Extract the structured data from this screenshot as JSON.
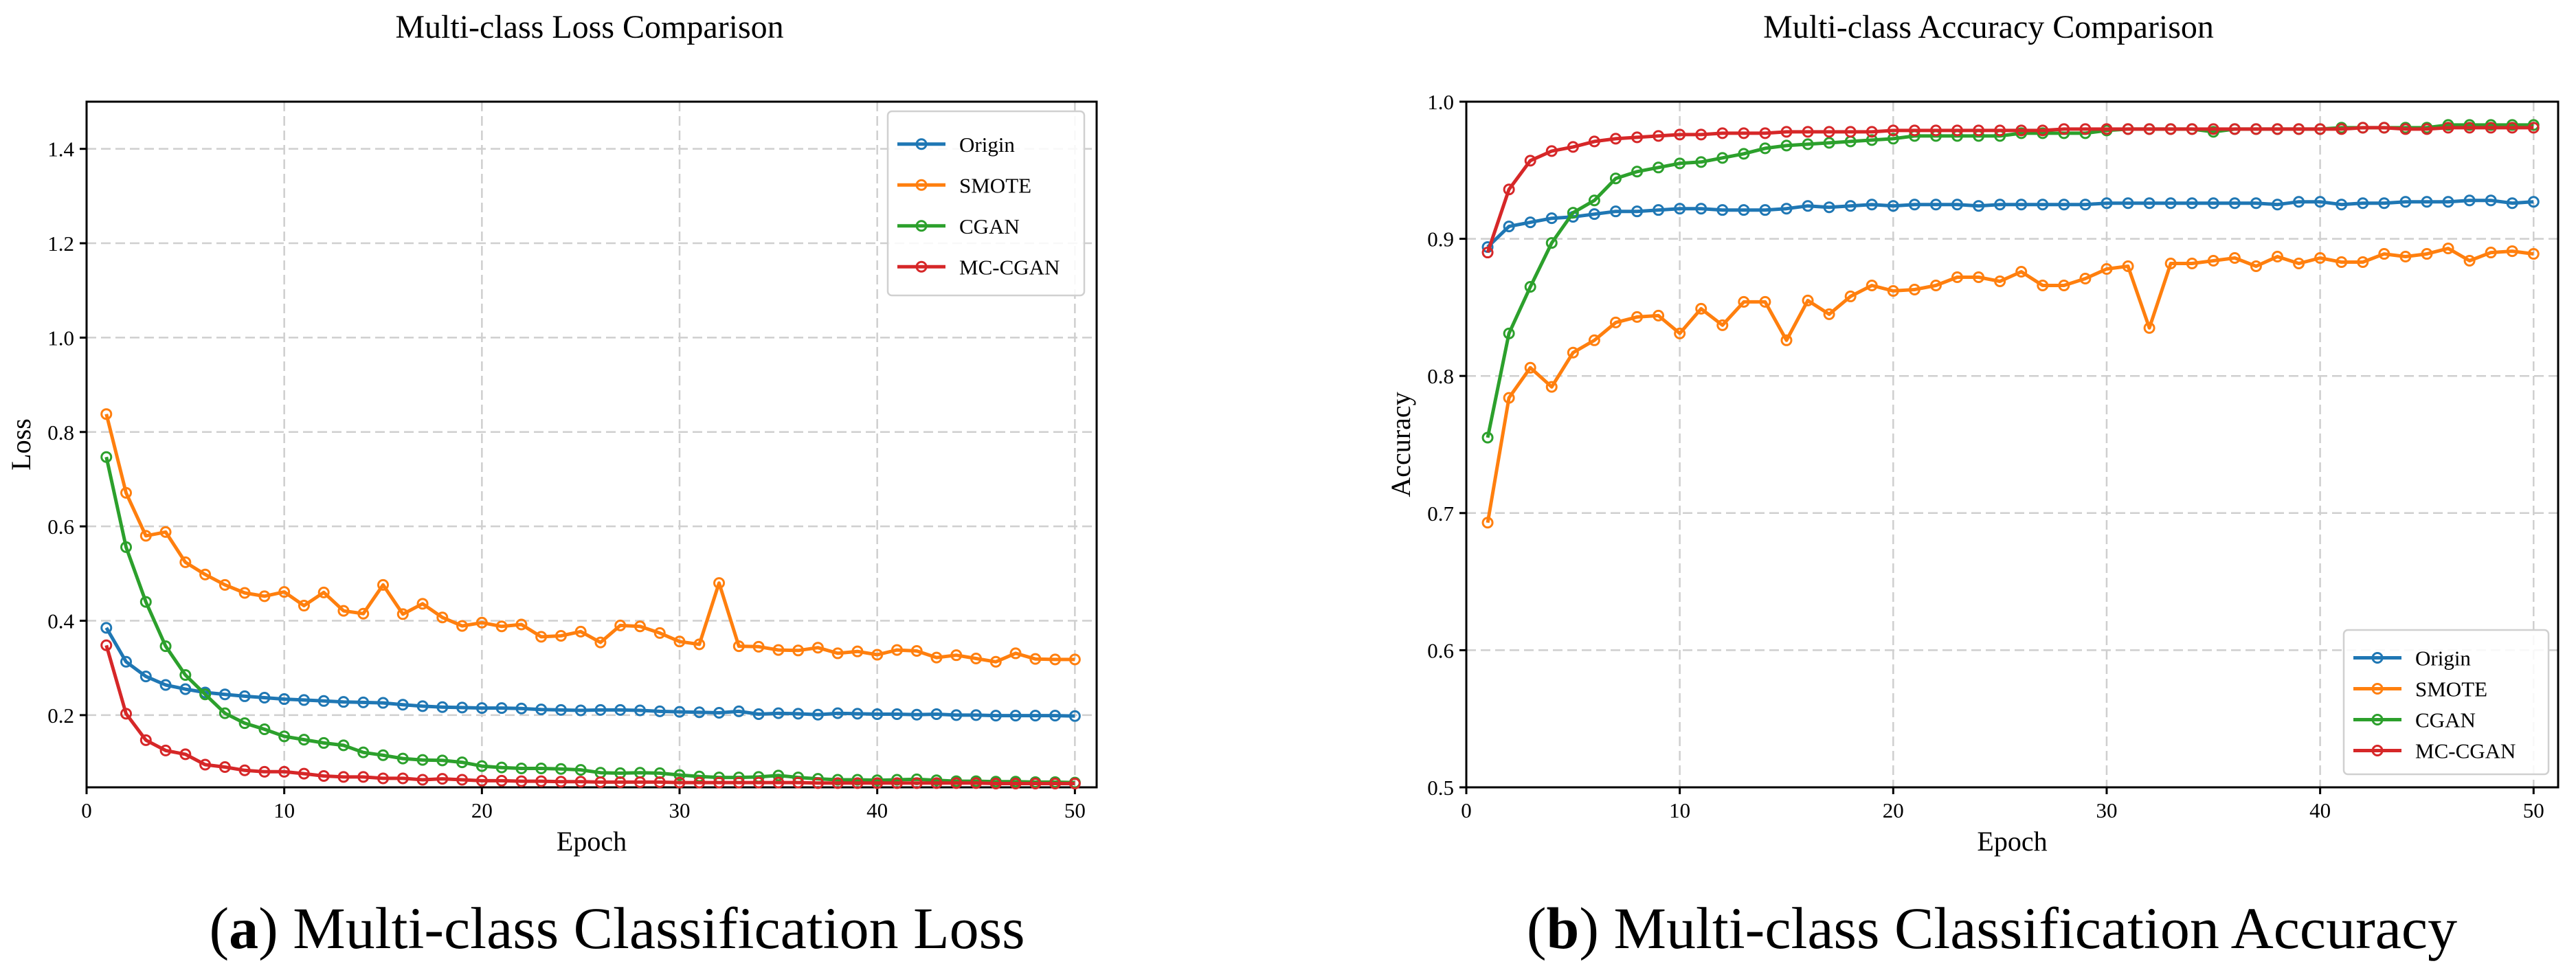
{
  "captions": [
    {
      "prefix": "(",
      "letter": "a",
      "suffix": ") Multi-class Classification Loss"
    },
    {
      "prefix": "(",
      "letter": "b",
      "suffix": ") Multi-class Classification Accuracy"
    }
  ],
  "colors": {
    "Origin": "#1f77b4",
    "SMOTE": "#ff7f0e",
    "CGAN": "#2ca02c",
    "MC-CGAN": "#d62728"
  },
  "chart_data": [
    {
      "type": "line",
      "title": "Multi-class Loss Comparison",
      "xlabel": "Epoch",
      "ylabel": "Loss",
      "xlim": [
        0,
        51.1
      ],
      "ylim": [
        0.047,
        1.5
      ],
      "xticks": [
        0,
        10,
        20,
        30,
        40,
        50
      ],
      "yticks": [
        0.2,
        0.4,
        0.6,
        0.8,
        1.0,
        1.2,
        1.4
      ],
      "ytick_labels": [
        "0.2",
        "0.4",
        "0.6",
        "0.8",
        "1.0",
        "1.2",
        "1.4"
      ],
      "grid": true,
      "legend": "top-right",
      "x": [
        1,
        2,
        3,
        4,
        5,
        6,
        7,
        8,
        9,
        10,
        11,
        12,
        13,
        14,
        15,
        16,
        17,
        18,
        19,
        20,
        21,
        22,
        23,
        24,
        25,
        26,
        27,
        28,
        29,
        30,
        31,
        32,
        33,
        34,
        35,
        36,
        37,
        38,
        39,
        40,
        41,
        42,
        43,
        44,
        45,
        46,
        47,
        48,
        49,
        50
      ],
      "series": [
        {
          "name": "Origin",
          "values": [
            0.385,
            0.313,
            0.282,
            0.264,
            0.255,
            0.248,
            0.244,
            0.24,
            0.237,
            0.234,
            0.232,
            0.23,
            0.228,
            0.227,
            0.226,
            0.222,
            0.219,
            0.217,
            0.216,
            0.215,
            0.215,
            0.214,
            0.212,
            0.211,
            0.21,
            0.211,
            0.211,
            0.21,
            0.208,
            0.207,
            0.206,
            0.205,
            0.208,
            0.202,
            0.204,
            0.203,
            0.201,
            0.204,
            0.203,
            0.202,
            0.202,
            0.201,
            0.202,
            0.2,
            0.2,
            0.199,
            0.199,
            0.199,
            0.199,
            0.198
          ]
        },
        {
          "name": "SMOTE",
          "values": [
            0.838,
            0.671,
            0.58,
            0.588,
            0.524,
            0.498,
            0.476,
            0.459,
            0.452,
            0.461,
            0.432,
            0.46,
            0.421,
            0.415,
            0.476,
            0.414,
            0.436,
            0.407,
            0.389,
            0.396,
            0.388,
            0.392,
            0.366,
            0.368,
            0.377,
            0.354,
            0.39,
            0.388,
            0.374,
            0.356,
            0.35,
            0.48,
            0.346,
            0.345,
            0.338,
            0.337,
            0.343,
            0.331,
            0.335,
            0.328,
            0.338,
            0.336,
            0.322,
            0.327,
            0.32,
            0.313,
            0.331,
            0.319,
            0.318,
            0.318
          ]
        },
        {
          "name": "CGAN",
          "values": [
            0.747,
            0.556,
            0.44,
            0.346,
            0.285,
            0.244,
            0.204,
            0.183,
            0.17,
            0.155,
            0.148,
            0.141,
            0.136,
            0.121,
            0.115,
            0.108,
            0.105,
            0.104,
            0.1,
            0.092,
            0.089,
            0.087,
            0.087,
            0.086,
            0.084,
            0.078,
            0.077,
            0.078,
            0.077,
            0.073,
            0.07,
            0.068,
            0.068,
            0.069,
            0.072,
            0.068,
            0.065,
            0.063,
            0.063,
            0.062,
            0.063,
            0.064,
            0.062,
            0.06,
            0.06,
            0.059,
            0.059,
            0.058,
            0.058,
            0.057
          ]
        },
        {
          "name": "MC-CGAN",
          "values": [
            0.348,
            0.203,
            0.147,
            0.125,
            0.117,
            0.095,
            0.09,
            0.083,
            0.08,
            0.08,
            0.076,
            0.071,
            0.069,
            0.069,
            0.066,
            0.066,
            0.063,
            0.065,
            0.063,
            0.061,
            0.061,
            0.06,
            0.06,
            0.059,
            0.059,
            0.058,
            0.058,
            0.058,
            0.058,
            0.057,
            0.057,
            0.057,
            0.057,
            0.057,
            0.057,
            0.057,
            0.056,
            0.056,
            0.056,
            0.056,
            0.056,
            0.056,
            0.056,
            0.056,
            0.056,
            0.055,
            0.055,
            0.055,
            0.055,
            0.055
          ]
        }
      ]
    },
    {
      "type": "line",
      "title": "Multi-class Accuracy Comparison",
      "xlabel": "Epoch",
      "ylabel": "Accuracy",
      "xlim": [
        0,
        51.15
      ],
      "ylim": [
        0.5,
        1.0
      ],
      "xticks": [
        0,
        10,
        20,
        30,
        40,
        50
      ],
      "yticks": [
        0.5,
        0.6,
        0.7,
        0.8,
        0.9,
        1.0
      ],
      "ytick_labels": [
        "0.5",
        "0.6",
        "0.7",
        "0.8",
        "0.9",
        "1.0"
      ],
      "grid": true,
      "legend": "bottom-right",
      "x": [
        1,
        2,
        3,
        4,
        5,
        6,
        7,
        8,
        9,
        10,
        11,
        12,
        13,
        14,
        15,
        16,
        17,
        18,
        19,
        20,
        21,
        22,
        23,
        24,
        25,
        26,
        27,
        28,
        29,
        30,
        31,
        32,
        33,
        34,
        35,
        36,
        37,
        38,
        39,
        40,
        41,
        42,
        43,
        44,
        45,
        46,
        47,
        48,
        49,
        50
      ],
      "series": [
        {
          "name": "Origin",
          "values": [
            0.894,
            0.909,
            0.912,
            0.915,
            0.916,
            0.918,
            0.92,
            0.92,
            0.921,
            0.922,
            0.922,
            0.921,
            0.921,
            0.921,
            0.922,
            0.924,
            0.923,
            0.924,
            0.925,
            0.924,
            0.925,
            0.925,
            0.925,
            0.924,
            0.925,
            0.925,
            0.925,
            0.925,
            0.925,
            0.926,
            0.926,
            0.926,
            0.926,
            0.926,
            0.926,
            0.926,
            0.926,
            0.925,
            0.927,
            0.927,
            0.925,
            0.926,
            0.926,
            0.927,
            0.927,
            0.927,
            0.928,
            0.928,
            0.926,
            0.927
          ]
        },
        {
          "name": "SMOTE",
          "values": [
            0.693,
            0.784,
            0.806,
            0.792,
            0.817,
            0.826,
            0.839,
            0.843,
            0.844,
            0.831,
            0.849,
            0.837,
            0.854,
            0.854,
            0.826,
            0.855,
            0.845,
            0.858,
            0.866,
            0.862,
            0.863,
            0.866,
            0.872,
            0.872,
            0.869,
            0.876,
            0.866,
            0.866,
            0.871,
            0.878,
            0.88,
            0.835,
            0.882,
            0.882,
            0.884,
            0.886,
            0.88,
            0.887,
            0.882,
            0.886,
            0.883,
            0.883,
            0.889,
            0.887,
            0.889,
            0.893,
            0.884,
            0.89,
            0.891,
            0.889
          ]
        },
        {
          "name": "CGAN",
          "values": [
            0.755,
            0.831,
            0.865,
            0.897,
            0.919,
            0.928,
            0.944,
            0.949,
            0.952,
            0.955,
            0.956,
            0.959,
            0.962,
            0.966,
            0.968,
            0.969,
            0.97,
            0.971,
            0.972,
            0.973,
            0.975,
            0.975,
            0.975,
            0.975,
            0.975,
            0.977,
            0.977,
            0.977,
            0.977,
            0.979,
            0.98,
            0.98,
            0.98,
            0.98,
            0.978,
            0.98,
            0.98,
            0.98,
            0.98,
            0.98,
            0.981,
            0.981,
            0.981,
            0.981,
            0.981,
            0.983,
            0.983,
            0.983,
            0.983,
            0.983
          ]
        },
        {
          "name": "MC-CGAN",
          "values": [
            0.89,
            0.936,
            0.957,
            0.964,
            0.967,
            0.971,
            0.973,
            0.974,
            0.975,
            0.976,
            0.976,
            0.977,
            0.977,
            0.977,
            0.978,
            0.978,
            0.978,
            0.978,
            0.978,
            0.979,
            0.979,
            0.979,
            0.979,
            0.979,
            0.979,
            0.979,
            0.979,
            0.98,
            0.98,
            0.98,
            0.98,
            0.98,
            0.98,
            0.98,
            0.98,
            0.98,
            0.98,
            0.98,
            0.98,
            0.98,
            0.98,
            0.981,
            0.981,
            0.98,
            0.98,
            0.981,
            0.981,
            0.981,
            0.981,
            0.981
          ]
        }
      ]
    }
  ]
}
